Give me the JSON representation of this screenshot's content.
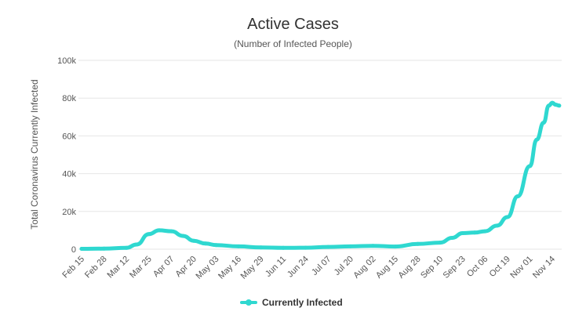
{
  "chart_data": {
    "type": "line",
    "title": "Active Cases",
    "subtitle": "(Number of Infected People)",
    "ylabel": "Total Coronavirus Currently Infected",
    "xlabel": "",
    "ylim": [
      0,
      100000
    ],
    "yticks": [
      0,
      20000,
      40000,
      60000,
      80000,
      100000
    ],
    "ytick_labels": [
      "0",
      "20k",
      "40k",
      "60k",
      "80k",
      "100k"
    ],
    "xtick_labels": [
      "Feb 15",
      "Feb 28",
      "Mar 12",
      "Mar 25",
      "Apr 07",
      "Apr 20",
      "May 03",
      "May 16",
      "May 29",
      "Jun 11",
      "Jun 24",
      "Jul 07",
      "Jul 20",
      "Aug 02",
      "Aug 15",
      "Aug 28",
      "Sep 10",
      "Sep 23",
      "Oct 06",
      "Oct 19",
      "Nov 01",
      "Nov 14"
    ],
    "grid": true,
    "legend": "bottom-center",
    "color": "#2fd8d0",
    "series": [
      {
        "name": "Currently Infected",
        "x": [
          "Feb 15",
          "Feb 28",
          "Mar 12",
          "Mar 18",
          "Mar 25",
          "Mar 31",
          "Apr 07",
          "Apr 14",
          "Apr 20",
          "Apr 27",
          "May 03",
          "May 16",
          "May 29",
          "Jun 11",
          "Jun 24",
          "Jul 07",
          "Jul 20",
          "Aug 02",
          "Aug 15",
          "Aug 28",
          "Sep 10",
          "Sep 17",
          "Sep 23",
          "Sep 30",
          "Oct 06",
          "Oct 13",
          "Oct 19",
          "Oct 25",
          "Nov 01",
          "Nov 05",
          "Nov 09",
          "Nov 12",
          "Nov 14",
          "Nov 16",
          "Nov 18"
        ],
        "values": [
          200,
          300,
          700,
          2500,
          8000,
          10000,
          9500,
          7000,
          4500,
          3000,
          2200,
          1500,
          900,
          700,
          800,
          1200,
          1500,
          1800,
          1400,
          2800,
          3500,
          6000,
          8500,
          8800,
          9500,
          12500,
          17000,
          28000,
          44000,
          58000,
          67000,
          76000,
          77500,
          76500,
          76000
        ]
      }
    ]
  },
  "legend": {
    "label": "Currently Infected"
  }
}
